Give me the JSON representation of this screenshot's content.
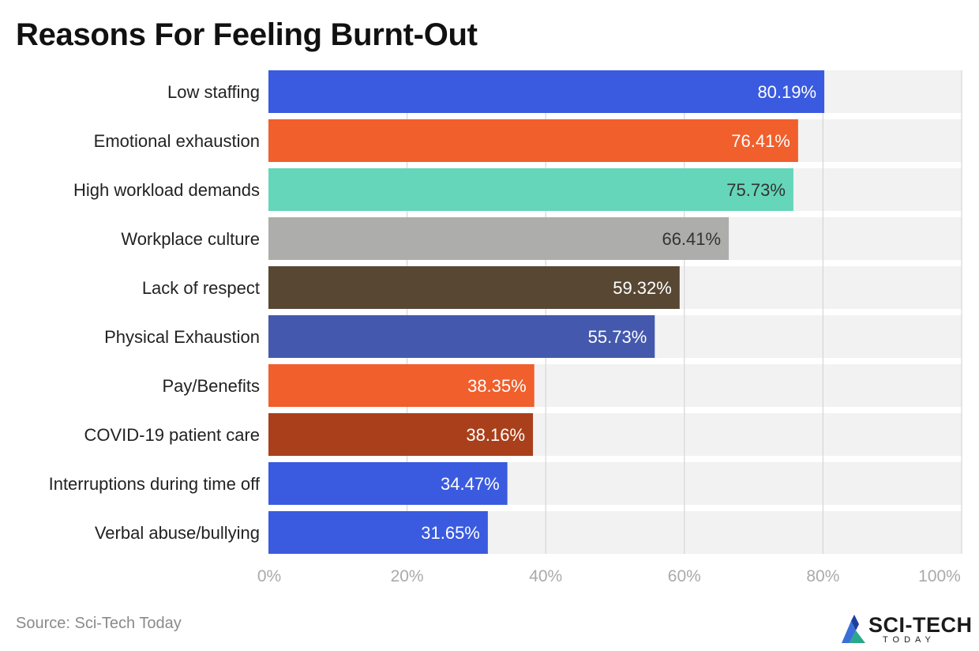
{
  "page": {
    "title": "Reasons For Feeling Burnt-Out",
    "source": "Source: Sci-Tech Today",
    "logo": {
      "text": "SCI-TECH",
      "subtext": "TODAY",
      "icon": "sci-tech-logo-icon"
    }
  },
  "chart_data": {
    "type": "bar",
    "orientation": "horizontal",
    "title": "Reasons For Feeling Burnt-Out",
    "xlabel": "",
    "ylabel": "",
    "categories": [
      "Low staffing",
      "Emotional exhaustion",
      "High workload demands",
      "Workplace culture",
      "Lack of respect",
      "Physical Exhaustion",
      "Pay/Benefits",
      "COVID-19 patient care",
      "Interruptions during time off",
      "Verbal abuse/bullying"
    ],
    "values": [
      80.19,
      76.41,
      75.73,
      66.41,
      59.32,
      55.73,
      38.35,
      38.16,
      34.47,
      31.65
    ],
    "data_labels": [
      "80.19%",
      "76.41%",
      "75.73%",
      "66.41%",
      "59.32%",
      "55.73%",
      "38.35%",
      "38.16%",
      "34.47%",
      "31.65%"
    ],
    "bar_colors": [
      "#3a5bdf",
      "#f05f2c",
      "#65d6b9",
      "#adadab",
      "#574733",
      "#4459ad",
      "#f05f2c",
      "#a9401b",
      "#3a5bdf",
      "#3a5bdf"
    ],
    "label_colors": [
      "#ffffff",
      "#ffffff",
      "#333333",
      "#333333",
      "#ffffff",
      "#ffffff",
      "#ffffff",
      "#ffffff",
      "#ffffff",
      "#ffffff"
    ],
    "xlim": [
      0,
      100
    ],
    "xticks": [
      0,
      20,
      40,
      60,
      80,
      100
    ],
    "xtick_labels": [
      "0%",
      "20%",
      "40%",
      "60%",
      "80%",
      "100%"
    ],
    "grid": true,
    "background_track_color": "#f2f2f2",
    "legend": "none"
  }
}
